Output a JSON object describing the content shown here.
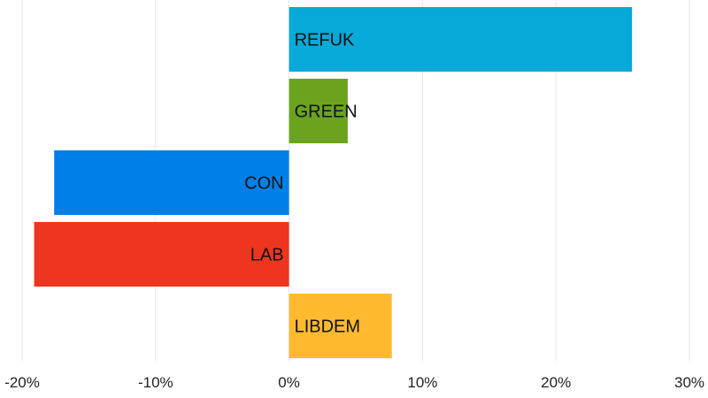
{
  "chart_data": {
    "type": "bar",
    "orientation": "horizontal",
    "categories": [
      "REFUK",
      "GREEN",
      "CON",
      "LAB",
      "LIBDEM"
    ],
    "values": [
      25.7,
      4.4,
      -17.6,
      -19.1,
      7.7
    ],
    "colors": [
      "#06a9d8",
      "#6ba31f",
      "#0080e6",
      "#ee3520",
      "#ffba30"
    ],
    "xlim": [
      -20,
      30
    ],
    "xticks": [
      -20,
      -10,
      0,
      10,
      20,
      30
    ],
    "xtick_labels": [
      "-20%",
      "-10%",
      "0%",
      "10%",
      "20%",
      "30%"
    ],
    "title": "",
    "xlabel": "",
    "ylabel": "",
    "grid": "vertical",
    "legend": "none"
  }
}
